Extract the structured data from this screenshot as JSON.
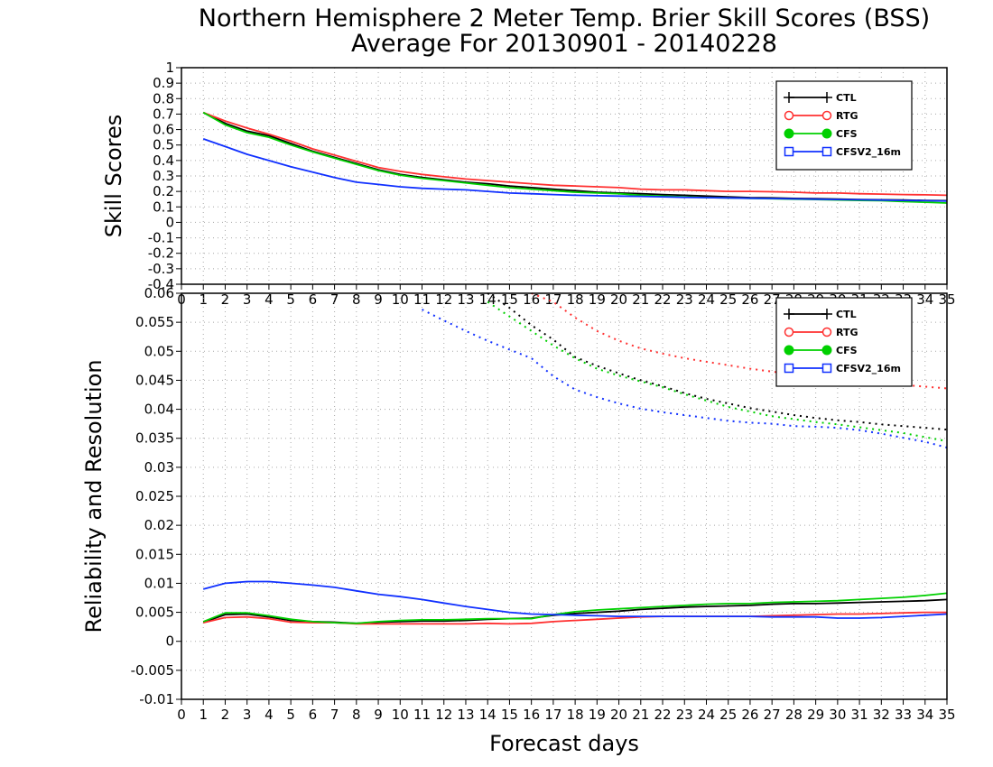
{
  "titles": {
    "line1": "Northern Hemisphere 2 Meter Temp. Brier Skill Scores (BSS)",
    "line2": "Average For 20130901 - 20140228"
  },
  "colors": {
    "CTL": "#000000",
    "RTG": "#ff3030",
    "CFS": "#00d000",
    "CFSV2_16m": "#1030ff"
  },
  "chart_data": [
    {
      "type": "line",
      "ylabel": "Skill Scores",
      "xlim": [
        0,
        35
      ],
      "ylim": [
        -0.4,
        1
      ],
      "xticks": [
        0,
        1,
        2,
        3,
        4,
        5,
        6,
        7,
        8,
        9,
        10,
        11,
        12,
        13,
        14,
        15,
        16,
        17,
        18,
        19,
        20,
        21,
        22,
        23,
        24,
        25,
        26,
        27,
        28,
        29,
        30,
        31,
        32,
        33,
        34,
        35
      ],
      "yticks": [
        "-0.4",
        "-0.3",
        "-0.2",
        "-0.1",
        "0",
        "0.1",
        "0.2",
        "0.3",
        "0.4",
        "0.5",
        "0.6",
        "0.7",
        "0.8",
        "0.9",
        "1"
      ],
      "grid": true,
      "legend_position": "top-right",
      "x": [
        1,
        2,
        3,
        4,
        5,
        6,
        7,
        8,
        9,
        10,
        11,
        12,
        13,
        14,
        15,
        16,
        17,
        18,
        19,
        20,
        21,
        22,
        23,
        24,
        25,
        26,
        27,
        28,
        29,
        30,
        31,
        32,
        33,
        34,
        35
      ],
      "series": [
        {
          "name": "CTL",
          "marker": "plus",
          "style": "solid",
          "values": [
            0.71,
            0.64,
            0.59,
            0.56,
            0.51,
            0.46,
            0.42,
            0.38,
            0.34,
            0.31,
            0.29,
            0.275,
            0.26,
            0.25,
            0.235,
            0.225,
            0.215,
            0.205,
            0.195,
            0.19,
            0.185,
            0.18,
            0.175,
            0.17,
            0.165,
            0.16,
            0.158,
            0.155,
            0.153,
            0.15,
            0.148,
            0.146,
            0.144,
            0.142,
            0.14
          ]
        },
        {
          "name": "RTG",
          "marker": "open-circle",
          "style": "solid",
          "values": [
            0.71,
            0.655,
            0.61,
            0.57,
            0.525,
            0.475,
            0.435,
            0.395,
            0.355,
            0.33,
            0.31,
            0.295,
            0.28,
            0.27,
            0.26,
            0.25,
            0.24,
            0.235,
            0.23,
            0.225,
            0.215,
            0.21,
            0.21,
            0.205,
            0.2,
            0.2,
            0.198,
            0.195,
            0.19,
            0.19,
            0.185,
            0.183,
            0.18,
            0.178,
            0.175
          ]
        },
        {
          "name": "CFS",
          "marker": "filled-circle",
          "style": "solid",
          "values": [
            0.71,
            0.63,
            0.58,
            0.55,
            0.5,
            0.455,
            0.415,
            0.375,
            0.335,
            0.305,
            0.285,
            0.27,
            0.255,
            0.24,
            0.225,
            0.215,
            0.205,
            0.195,
            0.19,
            0.185,
            0.175,
            0.17,
            0.165,
            0.16,
            0.158,
            0.155,
            0.153,
            0.15,
            0.148,
            0.145,
            0.142,
            0.14,
            0.135,
            0.13,
            0.125
          ]
        },
        {
          "name": "CFSV2_16m",
          "marker": "open-square",
          "style": "solid",
          "values": [
            0.54,
            0.49,
            0.44,
            0.4,
            0.36,
            0.325,
            0.29,
            0.26,
            0.245,
            0.23,
            0.22,
            0.215,
            0.21,
            0.2,
            0.19,
            0.185,
            0.18,
            0.175,
            0.172,
            0.17,
            0.168,
            0.165,
            0.162,
            0.16,
            0.158,
            0.156,
            0.154,
            0.152,
            0.15,
            0.148,
            0.146,
            0.144,
            0.142,
            0.14,
            0.138
          ]
        }
      ]
    },
    {
      "type": "line",
      "ylabel": "Reliability and Resolution",
      "xlabel": "Forecast days",
      "xlim": [
        0,
        35
      ],
      "ylim": [
        -0.01,
        0.06
      ],
      "xticks": [
        0,
        1,
        2,
        3,
        4,
        5,
        6,
        7,
        8,
        9,
        10,
        11,
        12,
        13,
        14,
        15,
        16,
        17,
        18,
        19,
        20,
        21,
        22,
        23,
        24,
        25,
        26,
        27,
        28,
        29,
        30,
        31,
        32,
        33,
        34,
        35
      ],
      "yticks": [
        "-0.01",
        "-0.005",
        "0",
        "0.005",
        "0.01",
        "0.015",
        "0.02",
        "0.025",
        "0.03",
        "0.035",
        "0.04",
        "0.045",
        "0.05",
        "0.055",
        "0.06"
      ],
      "grid": true,
      "legend_position": "top-right",
      "x": [
        1,
        2,
        3,
        4,
        5,
        6,
        7,
        8,
        9,
        10,
        11,
        12,
        13,
        14,
        15,
        16,
        17,
        18,
        19,
        20,
        21,
        22,
        23,
        24,
        25,
        26,
        27,
        28,
        29,
        30,
        31,
        32,
        33,
        34,
        35
      ],
      "series": [
        {
          "name": "CTL",
          "kind": "reliability",
          "style": "solid",
          "values": [
            0.0033,
            0.0046,
            0.0047,
            0.0042,
            0.0036,
            0.0034,
            0.0033,
            0.0031,
            0.0033,
            0.0034,
            0.0035,
            0.0035,
            0.0036,
            0.0038,
            0.0039,
            0.004,
            0.0045,
            0.0048,
            0.005,
            0.0052,
            0.0055,
            0.0057,
            0.0059,
            0.006,
            0.0061,
            0.0062,
            0.0064,
            0.0065,
            0.0065,
            0.0066,
            0.0067,
            0.0068,
            0.0069,
            0.007,
            0.0072
          ]
        },
        {
          "name": "RTG",
          "kind": "reliability",
          "style": "solid",
          "values": [
            0.0032,
            0.0041,
            0.0042,
            0.0039,
            0.0033,
            0.0032,
            0.0032,
            0.003,
            0.003,
            0.003,
            0.003,
            0.003,
            0.003,
            0.0031,
            0.003,
            0.0031,
            0.0034,
            0.0036,
            0.0038,
            0.004,
            0.0042,
            0.0043,
            0.0043,
            0.0043,
            0.0043,
            0.0043,
            0.0044,
            0.0045,
            0.0046,
            0.0047,
            0.0047,
            0.0048,
            0.0049,
            0.005,
            0.005
          ]
        },
        {
          "name": "CFS",
          "kind": "reliability",
          "style": "solid",
          "values": [
            0.0034,
            0.0049,
            0.0049,
            0.0044,
            0.0038,
            0.0034,
            0.0032,
            0.0031,
            0.0034,
            0.0036,
            0.0037,
            0.0037,
            0.0038,
            0.0039,
            0.0039,
            0.0039,
            0.0046,
            0.0051,
            0.0054,
            0.0056,
            0.0058,
            0.006,
            0.0062,
            0.0064,
            0.0065,
            0.0065,
            0.0067,
            0.0068,
            0.0069,
            0.007,
            0.0072,
            0.0074,
            0.0076,
            0.0079,
            0.0083
          ]
        },
        {
          "name": "CFSV2_16m",
          "kind": "reliability",
          "style": "solid",
          "values": [
            0.009,
            0.01,
            0.0103,
            0.0103,
            0.01,
            0.0097,
            0.0093,
            0.0087,
            0.0081,
            0.0077,
            0.0072,
            0.0066,
            0.006,
            0.0055,
            0.005,
            0.0047,
            0.0046,
            0.0045,
            0.0044,
            0.0043,
            0.0043,
            0.0043,
            0.0043,
            0.0043,
            0.0043,
            0.0043,
            0.0042,
            0.0042,
            0.0042,
            0.004,
            0.004,
            0.0041,
            0.0043,
            0.0045,
            0.0047
          ]
        },
        {
          "name": "CTL",
          "kind": "resolution",
          "style": "dotted",
          "x": [
            14,
            15,
            16,
            17,
            18,
            19,
            20,
            21,
            22,
            23,
            24,
            25,
            26,
            27,
            28,
            29,
            30,
            31,
            32,
            33,
            34,
            35
          ],
          "values": [
            0.06,
            0.0575,
            0.0545,
            0.052,
            0.049,
            0.0475,
            0.0462,
            0.045,
            0.044,
            0.0428,
            0.0418,
            0.041,
            0.0402,
            0.0396,
            0.039,
            0.0385,
            0.0381,
            0.0378,
            0.0374,
            0.0371,
            0.0368,
            0.0365
          ]
        },
        {
          "name": "RTG",
          "kind": "resolution",
          "style": "dotted",
          "x": [
            16,
            17,
            18,
            19,
            20,
            21,
            22,
            23,
            24,
            25,
            26,
            27,
            28,
            29,
            30,
            31,
            32,
            33,
            34,
            35
          ],
          "values": [
            0.06,
            0.0585,
            0.0558,
            0.0535,
            0.0518,
            0.0505,
            0.0496,
            0.0488,
            0.0482,
            0.0476,
            0.047,
            0.0465,
            0.046,
            0.0455,
            0.0451,
            0.0448,
            0.0445,
            0.0442,
            0.0439,
            0.0436
          ]
        },
        {
          "name": "CFS",
          "kind": "resolution",
          "style": "dotted",
          "x": [
            14,
            15,
            16,
            17,
            18,
            19,
            20,
            21,
            22,
            23,
            24,
            25,
            26,
            27,
            28,
            29,
            30,
            31,
            32,
            33,
            34,
            35
          ],
          "values": [
            0.0585,
            0.056,
            0.0535,
            0.051,
            0.0488,
            0.047,
            0.0458,
            0.0448,
            0.0438,
            0.0426,
            0.0415,
            0.0404,
            0.0396,
            0.0388,
            0.0383,
            0.0378,
            0.0374,
            0.0369,
            0.0364,
            0.0359,
            0.0352,
            0.0345
          ]
        },
        {
          "name": "CFSV2_16m",
          "kind": "resolution",
          "style": "dotted",
          "x": [
            11,
            12,
            13,
            14,
            15,
            16,
            17,
            18,
            19,
            20,
            21,
            22,
            23,
            24,
            25,
            26,
            27,
            28,
            29,
            30,
            31,
            32,
            33,
            34,
            35
          ],
          "values": [
            0.0572,
            0.0553,
            0.0535,
            0.0518,
            0.0503,
            0.0488,
            0.0457,
            0.0434,
            0.0421,
            0.041,
            0.0401,
            0.0395,
            0.039,
            0.0385,
            0.038,
            0.0377,
            0.0375,
            0.0371,
            0.037,
            0.0368,
            0.0364,
            0.0358,
            0.0351,
            0.0344,
            0.0334
          ]
        }
      ]
    }
  ]
}
